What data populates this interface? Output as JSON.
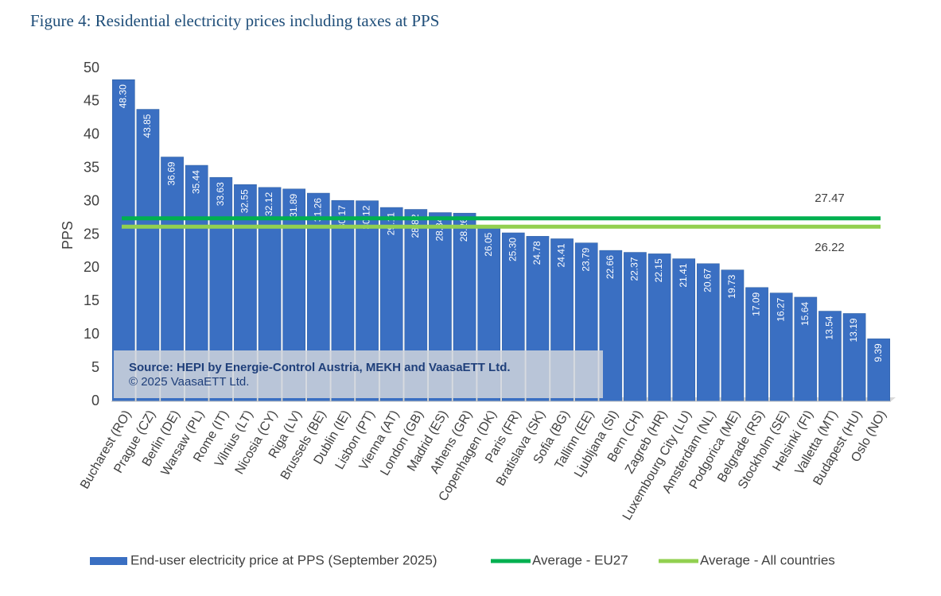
{
  "chart_data": {
    "type": "bar",
    "title": "Figure 4: Residential electricity prices including taxes at PPS",
    "y_label": "PPS",
    "categories": [
      "Bucharest (RO)",
      "Prague (CZ)",
      "Berlin (DE)",
      "Warsaw (PL)",
      "Rome (IT)",
      "Vilnius (LT)",
      "Nicosia (CY)",
      "Riga (LV)",
      "Brussels (BE)",
      "Dublin (IE)",
      "Lisbon (PT)",
      "Vienna (AT)",
      "London (GB)",
      "Madrid (ES)",
      "Athens (GR)",
      "Copenhagen (DK)",
      "Paris (FR)",
      "Bratislava (SK)",
      "Sofia (BG)",
      "Tallinn (EE)",
      "Ljubljana (SI)",
      "Bern (CH)",
      "Zagreb (HR)",
      "Luxembourg City (LU)",
      "Amsterdam (NL)",
      "Podgorica (ME)",
      "Belgrade (RS)",
      "Stockholm (SE)",
      "Helsinki (FI)",
      "Valletta (MT)",
      "Budapest (HU)",
      "Oslo (NO)"
    ],
    "series": [
      {
        "name": "End-user electricity price at PPS (September 2025)",
        "color": "#3a6fc2",
        "values": [
          48.3,
          43.85,
          36.69,
          35.44,
          33.63,
          32.55,
          32.12,
          31.89,
          31.26,
          30.17,
          30.12,
          29.11,
          28.82,
          28.34,
          28.26,
          26.05,
          25.3,
          24.78,
          24.41,
          23.79,
          22.66,
          22.37,
          22.15,
          21.41,
          20.67,
          19.73,
          17.09,
          16.27,
          15.64,
          13.54,
          13.19,
          9.39
        ],
        "value_labels": [
          "48.30",
          "43.85",
          "36.69",
          "35.44",
          "33.63",
          "32.55",
          "32.12",
          "31.89",
          "31.26",
          "30.17",
          "30.12",
          "29.11",
          "28.82",
          "28.34",
          "28.26",
          "26.05",
          "25.30",
          "24.78",
          "24.41",
          "23.79",
          "22.66",
          "22.37",
          "22.15",
          "21.41",
          "20.67",
          "19.73",
          "17.09",
          "16.27",
          "15.64",
          "13.54",
          "13.19",
          "9.39"
        ]
      }
    ],
    "reference_lines": [
      {
        "name": "Average - EU27",
        "color": "#00b050",
        "value": 27.47
      },
      {
        "name": "Average - All countries",
        "color": "#92d050",
        "value": 26.22
      }
    ],
    "ylim": [
      0,
      50
    ],
    "yticks": [
      0,
      5,
      10,
      15,
      20,
      25,
      30,
      35,
      40,
      45,
      50
    ],
    "grid": false,
    "source": "Source: HEPI by Energie-Control Austria, MEKH and VaasaETT Ltd.",
    "copyright": "© 2025 VaasaETT Ltd."
  }
}
